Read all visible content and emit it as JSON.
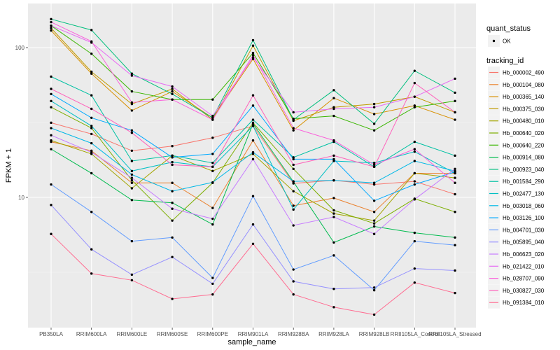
{
  "chart_data": {
    "type": "line",
    "title": "",
    "xlabel": "sample_name",
    "ylabel": "FPKM + 1",
    "yscale": "log10",
    "ylim": [
      1.45,
      175
    ],
    "y_ticks": [
      10,
      100
    ],
    "y_tick_labels": [
      "10",
      "100"
    ],
    "grid": true,
    "legend_position": "right",
    "categories": [
      "PB350LA",
      "RRIM600LA",
      "RRIM600LE",
      "RRIM600SE",
      "RRIM600PE",
      "RRIM901LA",
      "RRIM928BA",
      "RRIM928LA",
      "RRIM928LB",
      "RRII105LA_Control",
      "RRII105LA_Stressed"
    ],
    "shape_legend": {
      "title": "quant_status",
      "items": [
        {
          "label": "OK",
          "shape": "point"
        }
      ]
    },
    "color_legend_title": "tracking_id",
    "series": [
      {
        "name": "Hb_000002_490",
        "color": "#F8766D",
        "values": [
          31.5,
          26.5,
          20.5,
          22,
          25,
          30,
          12.4,
          13,
          12.2,
          12.8,
          10.5
        ]
      },
      {
        "name": "Hb_000104_080",
        "color": "#EA8331",
        "values": [
          23.5,
          20.5,
          12.5,
          12.5,
          8.5,
          24,
          8.8,
          9.9,
          8,
          14.5,
          14.5
        ]
      },
      {
        "name": "Hb_000365_140",
        "color": "#D89000",
        "values": [
          130,
          67,
          38,
          51,
          34,
          84,
          28,
          46,
          36,
          41,
          33
        ]
      },
      {
        "name": "Hb_000375_030",
        "color": "#C09B00",
        "values": [
          135,
          69,
          42,
          53,
          33,
          103,
          32.5,
          40,
          42,
          47,
          37
        ]
      },
      {
        "name": "Hb_000480_010",
        "color": "#A3A500",
        "values": [
          24,
          19.5,
          11.5,
          19,
          15,
          19.5,
          11,
          7.8,
          7,
          14.5,
          13.5
        ]
      },
      {
        "name": "Hb_000640_020",
        "color": "#7CAE00",
        "values": [
          40,
          29,
          13,
          7,
          12.5,
          31.5,
          15.5,
          8.2,
          6.7,
          9.8,
          8
        ]
      },
      {
        "name": "Hb_000640_220",
        "color": "#39B600",
        "values": [
          140,
          91,
          51,
          45,
          45,
          92,
          33.5,
          35,
          28,
          40,
          44
        ]
      },
      {
        "name": "Hb_000914_080",
        "color": "#00BB4E",
        "values": [
          21,
          14.5,
          9.6,
          9.2,
          6.6,
          31,
          12.7,
          5,
          6.4,
          5.8,
          5.4
        ]
      },
      {
        "name": "Hb_000923_040",
        "color": "#00BF7D",
        "values": [
          155,
          131,
          67,
          49,
          34,
          112,
          33,
          52,
          31,
          70,
          50
        ]
      },
      {
        "name": "Hb_001584_290",
        "color": "#00C1A3",
        "values": [
          64,
          48,
          17.5,
          19,
          17,
          33,
          18.5,
          23.5,
          16,
          23.5,
          19
        ]
      },
      {
        "name": "Hb_002477_130",
        "color": "#00BFC4",
        "values": [
          44,
          30,
          15,
          17.2,
          16,
          30,
          8.3,
          17.5,
          17,
          20.2,
          14.5
        ]
      },
      {
        "name": "Hb_003018_060",
        "color": "#00B8E7",
        "values": [
          29,
          23,
          14.2,
          11,
          12.6,
          20,
          12.8,
          13,
          12.5,
          17.5,
          15
        ]
      },
      {
        "name": "Hb_003126_100",
        "color": "#00A9FF",
        "values": [
          49,
          34,
          28,
          18.5,
          19.5,
          41,
          18,
          18,
          9.5,
          12.2,
          14.8
        ]
      },
      {
        "name": "Hb_004701_030",
        "color": "#619CFF",
        "values": [
          12.2,
          8,
          5.1,
          5.4,
          2.9,
          10.2,
          3.3,
          4.1,
          2.4,
          5.1,
          4.8
        ]
      },
      {
        "name": "Hb_005895_040",
        "color": "#9590FF",
        "values": [
          8.9,
          4.5,
          3.05,
          4,
          2.65,
          6.6,
          2.75,
          2.45,
          2.5,
          3.35,
          3.25
        ]
      },
      {
        "name": "Hb_006623_020",
        "color": "#C77CFF",
        "values": [
          26,
          20,
          13.5,
          8.4,
          7.2,
          18,
          6.5,
          7.4,
          5.7,
          9.7,
          15.5
        ]
      },
      {
        "name": "Hb_021422_010",
        "color": "#E76BF3",
        "values": [
          140,
          108,
          65,
          55,
          35,
          86,
          37,
          39,
          40,
          47,
          62
        ]
      },
      {
        "name": "Hb_028707_090",
        "color": "#FA62DB",
        "values": [
          148,
          110,
          43,
          45,
          33,
          89,
          29,
          24,
          16.5,
          21,
          12.5
        ]
      },
      {
        "name": "Hb_030827_030",
        "color": "#FF62BC",
        "values": [
          53,
          39,
          27,
          16.5,
          16,
          48,
          16.5,
          19,
          16,
          58,
          37
        ]
      },
      {
        "name": "Hb_091384_010",
        "color": "#FF6C91",
        "values": [
          5.7,
          3.1,
          2.8,
          2.1,
          2.25,
          4.9,
          2.25,
          1.85,
          1.65,
          2.7,
          2.3
        ]
      }
    ]
  }
}
